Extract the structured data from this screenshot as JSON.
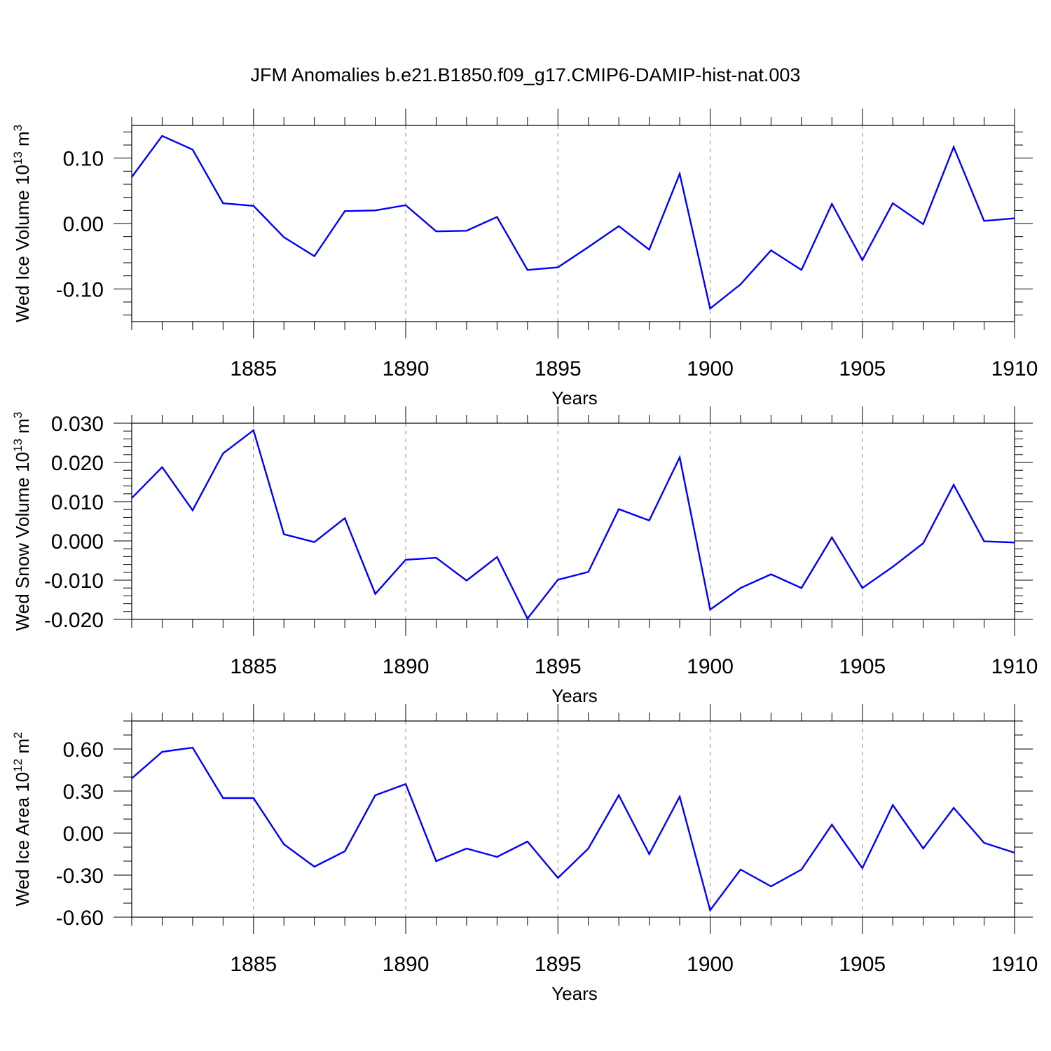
{
  "figure": {
    "title": "JFM Anomalies b.e21.B1850.f09_g17.CMIP6-DAMIP-hist-nat.003",
    "line_color": "#0000ff",
    "grid_color": "#888888"
  },
  "chart_data": [
    {
      "type": "line",
      "title": "",
      "xlabel": "Years",
      "ylabel": {
        "base": "Wed Ice Volume 10",
        "exp": "13",
        "unit": " m",
        "unit_exp": "3"
      },
      "xlim": [
        1881,
        1910
      ],
      "ylim": [
        -0.15,
        0.15
      ],
      "xticks": [
        1885,
        1890,
        1895,
        1900,
        1905,
        1910
      ],
      "yticks": [
        0.1,
        0.0,
        -0.1
      ],
      "ytick_labels": [
        "0.10",
        "0.00",
        "-0.10"
      ],
      "y_minor_step": 0.02,
      "x": [
        1881,
        1882,
        1883,
        1884,
        1885,
        1886,
        1887,
        1888,
        1889,
        1890,
        1891,
        1892,
        1893,
        1894,
        1895,
        1896,
        1897,
        1898,
        1899,
        1900,
        1901,
        1902,
        1903,
        1904,
        1905,
        1906,
        1907,
        1908,
        1909,
        1910
      ],
      "series": [
        {
          "name": "Wed Ice Volume",
          "values": [
            0.071,
            0.134,
            0.113,
            0.031,
            0.027,
            -0.021,
            -0.05,
            0.019,
            0.02,
            0.028,
            -0.012,
            -0.011,
            0.01,
            -0.071,
            -0.067,
            -0.036,
            -0.004,
            -0.04,
            0.076,
            -0.13,
            -0.093,
            -0.041,
            -0.071,
            0.03,
            -0.056,
            0.031,
            -0.001,
            0.117,
            0.004,
            0.008
          ]
        }
      ]
    },
    {
      "type": "line",
      "title": "",
      "xlabel": "Years",
      "ylabel": {
        "base": "Wed Snow Volume 10",
        "exp": "13",
        "unit": " m",
        "unit_exp": "3"
      },
      "xlim": [
        1881,
        1910
      ],
      "ylim": [
        -0.02,
        0.03
      ],
      "xticks": [
        1885,
        1890,
        1895,
        1900,
        1905,
        1910
      ],
      "yticks": [
        0.03,
        0.02,
        0.01,
        0.0,
        -0.01,
        -0.02
      ],
      "ytick_labels": [
        "0.030",
        "0.020",
        "0.010",
        "0.000",
        "-0.010",
        "-0.020"
      ],
      "y_minor_step": 0.002,
      "x": [
        1881,
        1882,
        1883,
        1884,
        1885,
        1886,
        1887,
        1888,
        1889,
        1890,
        1891,
        1892,
        1893,
        1894,
        1895,
        1896,
        1897,
        1898,
        1899,
        1900,
        1901,
        1902,
        1903,
        1904,
        1905,
        1906,
        1907,
        1908,
        1909,
        1910
      ],
      "series": [
        {
          "name": "Wed Snow Volume",
          "values": [
            0.0109,
            0.0188,
            0.0078,
            0.0223,
            0.0282,
            0.0017,
            -0.0003,
            0.0058,
            -0.0135,
            -0.0048,
            -0.0043,
            -0.0101,
            -0.0041,
            -0.0198,
            -0.0099,
            -0.0079,
            0.0081,
            0.0052,
            0.0213,
            -0.0175,
            -0.012,
            -0.0085,
            -0.012,
            0.0009,
            -0.012,
            -0.0066,
            -0.0006,
            0.0143,
            -0.0001,
            -0.0004
          ]
        }
      ]
    },
    {
      "type": "line",
      "title": "",
      "xlabel": "Years",
      "ylabel": {
        "base": "Wed Ice Area 10",
        "exp": "12",
        "unit": " m",
        "unit_exp": "2"
      },
      "xlim": [
        1881,
        1910
      ],
      "ylim": [
        -0.6,
        0.8
      ],
      "xticks": [
        1885,
        1890,
        1895,
        1900,
        1905,
        1910
      ],
      "yticks": [
        0.6,
        0.3,
        0.0,
        -0.3,
        -0.6
      ],
      "ytick_labels": [
        "0.60",
        "0.30",
        "0.00",
        "-0.30",
        "-0.60"
      ],
      "y_minor_step": 0.1,
      "x": [
        1881,
        1882,
        1883,
        1884,
        1885,
        1886,
        1887,
        1888,
        1889,
        1890,
        1891,
        1892,
        1893,
        1894,
        1895,
        1896,
        1897,
        1898,
        1899,
        1900,
        1901,
        1902,
        1903,
        1904,
        1905,
        1906,
        1907,
        1908,
        1909,
        1910
      ],
      "series": [
        {
          "name": "Wed Ice Area",
          "values": [
            0.39,
            0.58,
            0.61,
            0.25,
            0.25,
            -0.08,
            -0.24,
            -0.13,
            0.27,
            0.35,
            -0.2,
            -0.11,
            -0.17,
            -0.06,
            -0.32,
            -0.11,
            0.27,
            -0.15,
            0.26,
            -0.55,
            -0.26,
            -0.38,
            -0.26,
            0.06,
            -0.25,
            0.2,
            -0.11,
            0.18,
            -0.07,
            -0.14
          ]
        }
      ]
    }
  ]
}
